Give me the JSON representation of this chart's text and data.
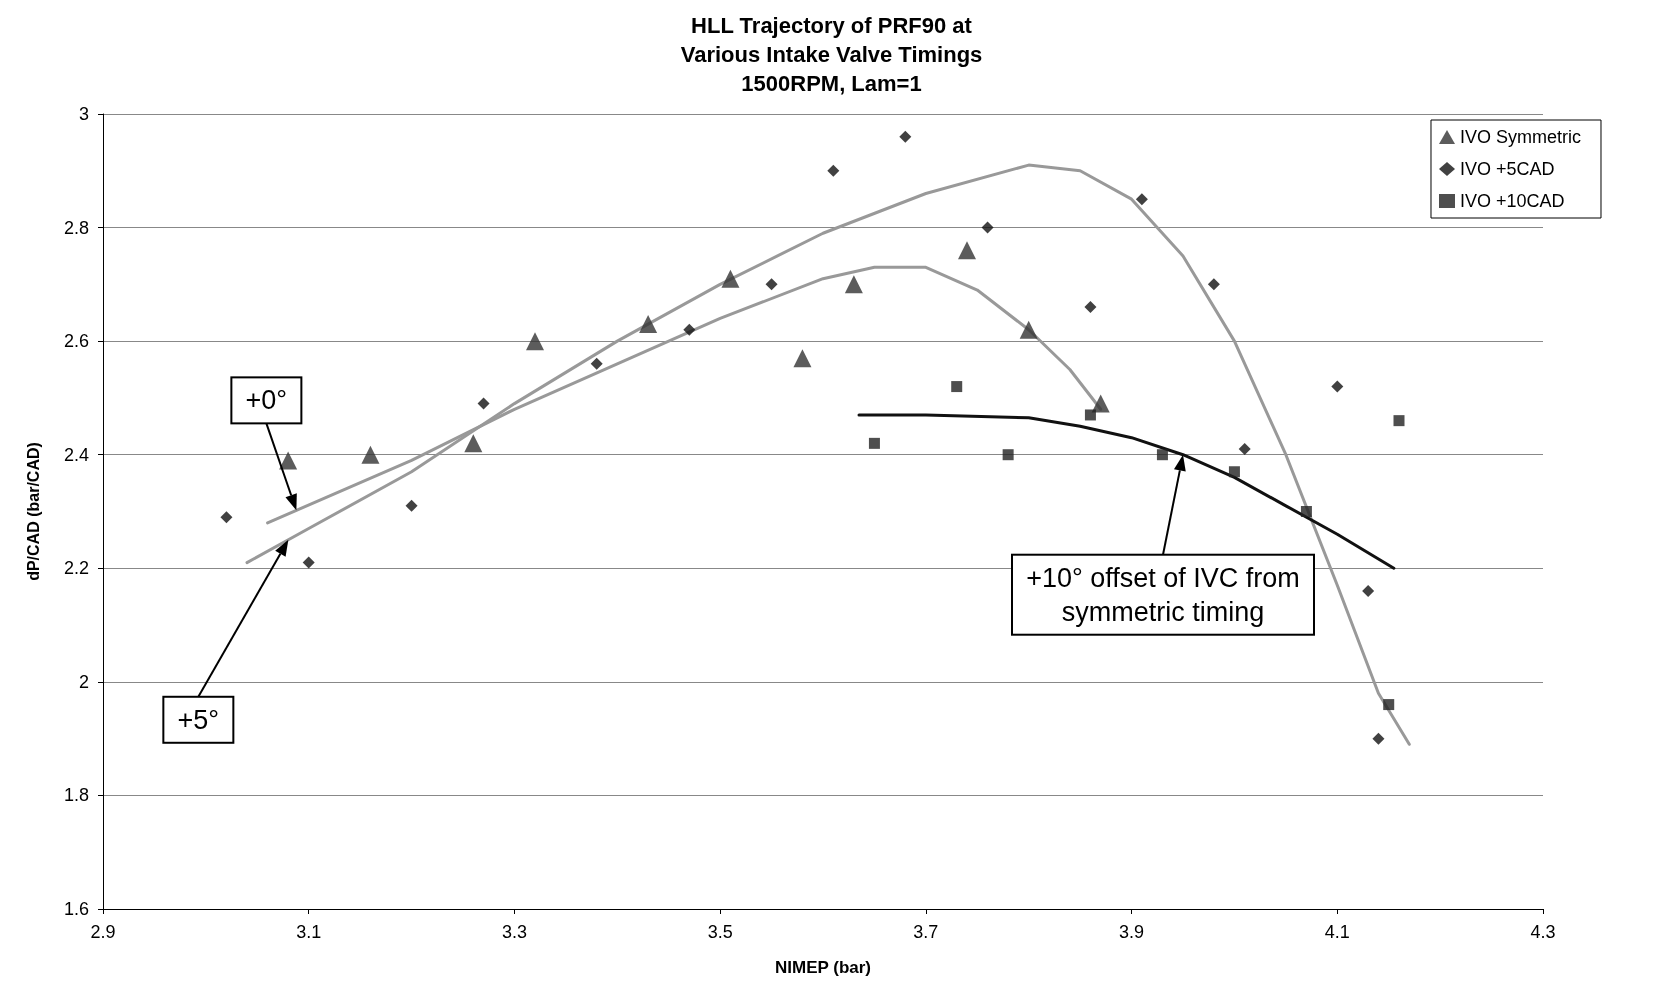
{
  "chart_data": {
    "type": "scatter",
    "title": "HLL Trajectory of PRF90 at\nVarious Intake Valve Timings\n1500RPM, Lam=1",
    "xlabel": "NIMEP (bar)",
    "ylabel": "dP/CAD (bar/CAD)",
    "xlim": [
      2.9,
      4.3
    ],
    "xticks": [
      2.9,
      3.1,
      3.3,
      3.5,
      3.7,
      3.9,
      4.1,
      4.3
    ],
    "ylim": [
      1.6,
      3
    ],
    "yticks": [
      1.6,
      1.8,
      2,
      2.2,
      2.4,
      2.6,
      2.8,
      3
    ],
    "grid": "y",
    "legend": "top right",
    "series": [
      {
        "name": "IVO Symmetric",
        "marker": "triangle",
        "color": "#333333",
        "x": [
          3.08,
          3.16,
          3.26,
          3.32,
          3.43,
          3.51,
          3.58,
          3.63,
          3.74,
          3.8,
          3.87
        ],
        "values": [
          2.39,
          2.4,
          2.42,
          2.6,
          2.63,
          2.71,
          2.57,
          2.7,
          2.76,
          2.62,
          2.49
        ]
      },
      {
        "name": "IVO +5CAD",
        "marker": "diamond",
        "color": "#111111",
        "x": [
          3.02,
          3.1,
          3.2,
          3.27,
          3.38,
          3.47,
          3.55,
          3.61,
          3.68,
          3.76,
          3.86,
          3.91,
          3.98,
          4.01,
          4.1,
          4.13,
          4.14
        ],
        "values": [
          2.29,
          2.21,
          2.31,
          2.49,
          2.56,
          2.62,
          2.7,
          2.9,
          2.96,
          2.8,
          2.66,
          2.85,
          2.7,
          2.41,
          2.52,
          2.16,
          1.9
        ]
      },
      {
        "name": "IVO +10CAD",
        "marker": "square",
        "color": "#222222",
        "x": [
          3.65,
          3.73,
          3.78,
          3.86,
          3.93,
          4.0,
          4.07,
          4.16,
          4.15
        ],
        "values": [
          2.42,
          2.52,
          2.4,
          2.47,
          2.4,
          2.37,
          2.3,
          2.46,
          1.96
        ]
      },
      {
        "type": "line",
        "color": "#999999",
        "x": [
          3.06,
          3.2,
          3.3,
          3.4,
          3.5,
          3.6,
          3.65,
          3.7,
          3.75,
          3.8,
          3.84,
          3.87
        ],
        "values": [
          2.28,
          2.39,
          2.48,
          2.56,
          2.64,
          2.71,
          2.73,
          2.73,
          2.69,
          2.62,
          2.55,
          2.48
        ]
      },
      {
        "type": "line",
        "color": "#999999",
        "x": [
          3.04,
          3.1,
          3.2,
          3.3,
          3.4,
          3.5,
          3.6,
          3.7,
          3.8,
          3.85,
          3.9,
          3.95,
          4.0,
          4.05,
          4.1,
          4.14,
          4.17
        ],
        "values": [
          2.21,
          2.27,
          2.37,
          2.49,
          2.6,
          2.7,
          2.79,
          2.86,
          2.91,
          2.9,
          2.85,
          2.75,
          2.6,
          2.4,
          2.17,
          1.98,
          1.89
        ]
      },
      {
        "type": "line",
        "color": "#111111",
        "x": [
          3.635,
          3.7,
          3.8,
          3.85,
          3.9,
          3.95,
          4.0,
          4.05,
          4.1,
          4.155
        ],
        "values": [
          2.47,
          2.47,
          2.465,
          2.45,
          2.43,
          2.4,
          2.36,
          2.31,
          2.26,
          2.2
        ]
      }
    ],
    "annotations": [
      "+0°",
      "+5°",
      "+10° offset of IVC from\nsymmetric timing"
    ]
  }
}
